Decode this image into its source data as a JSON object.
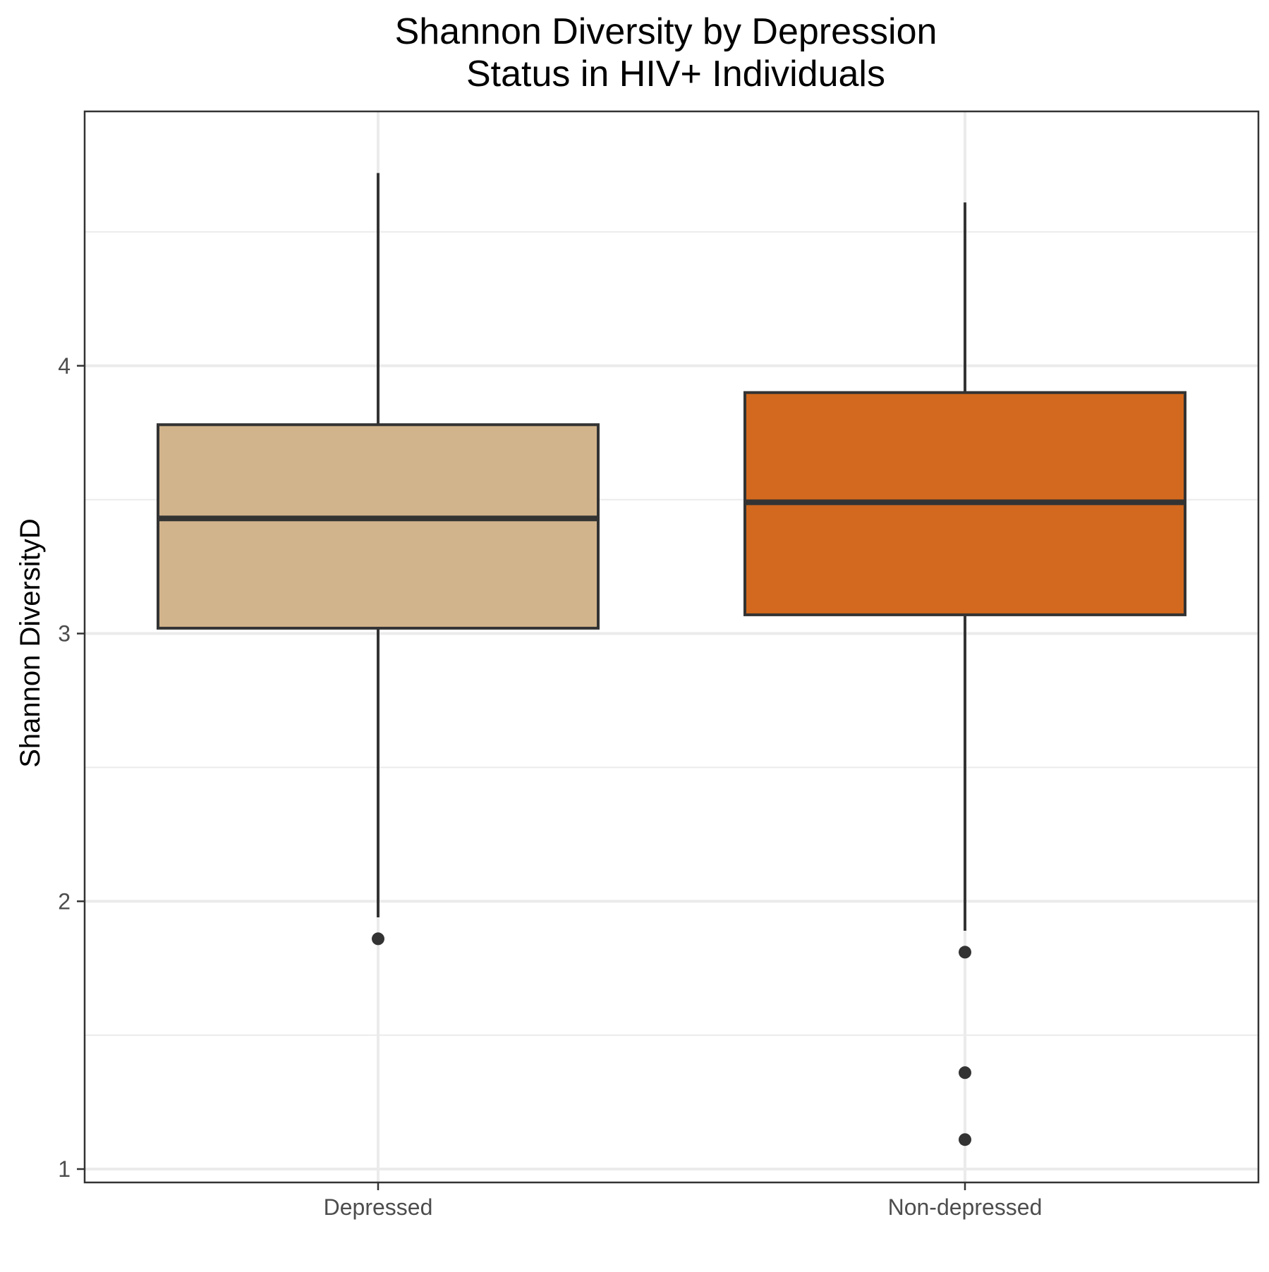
{
  "chart_data": {
    "type": "box",
    "title_lines": [
      "Shannon Diversity by Depression",
      "Status in HIV+ Individuals"
    ],
    "xlabel": "",
    "ylabel": "Shannon DiversityD",
    "ylim": [
      0.95,
      4.95
    ],
    "y_ticks": [
      1,
      2,
      3,
      4
    ],
    "y_tick_labels": [
      "1",
      "2",
      "3",
      "4"
    ],
    "grid": true,
    "categories": [
      "Depressed",
      "Non-depressed"
    ],
    "series": [
      {
        "category": "Depressed",
        "fill": "#D2B48C",
        "min": 1.94,
        "q1": 3.02,
        "median": 3.43,
        "q3": 3.78,
        "max": 4.72,
        "outliers": [
          1.86
        ]
      },
      {
        "category": "Non-depressed",
        "fill": "#D2691E",
        "min": 1.89,
        "q1": 3.07,
        "median": 3.49,
        "q3": 3.9,
        "max": 4.61,
        "outliers": [
          1.81,
          1.36,
          1.11
        ]
      }
    ],
    "colors": {
      "panel_border": "#333333",
      "grid": "#EBEBEB",
      "box_line": "#333333",
      "tick_text": "#4D4D4D"
    }
  }
}
